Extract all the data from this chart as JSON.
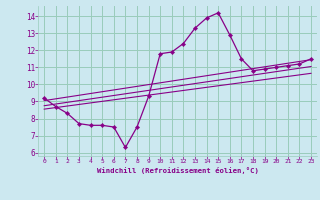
{
  "xlabel": "Windchill (Refroidissement éolien,°C)",
  "bg_color": "#cce8f0",
  "line_color": "#880088",
  "grid_color": "#99ccbb",
  "xlim": [
    -0.5,
    23.5
  ],
  "ylim": [
    5.8,
    14.6
  ],
  "yticks": [
    6,
    7,
    8,
    9,
    10,
    11,
    12,
    13,
    14
  ],
  "xticks": [
    0,
    1,
    2,
    3,
    4,
    5,
    6,
    7,
    8,
    9,
    10,
    11,
    12,
    13,
    14,
    15,
    16,
    17,
    18,
    19,
    20,
    21,
    22,
    23
  ],
  "curve1_x": [
    0,
    1,
    2,
    3,
    4,
    5,
    6,
    7,
    8,
    9,
    10,
    11,
    12,
    13,
    14,
    15,
    16,
    17,
    18,
    19,
    20,
    21,
    22,
    23
  ],
  "curve1_y": [
    9.2,
    8.7,
    8.3,
    7.7,
    7.6,
    7.6,
    7.5,
    6.3,
    7.5,
    9.3,
    11.8,
    11.9,
    12.4,
    13.3,
    13.9,
    14.2,
    12.9,
    11.5,
    10.8,
    10.9,
    11.0,
    11.1,
    11.2,
    11.5
  ],
  "line2_x": [
    0,
    23
  ],
  "line2_y": [
    9.05,
    11.45
  ],
  "line3_x": [
    0,
    23
  ],
  "line3_y": [
    8.75,
    11.05
  ],
  "line4_x": [
    0,
    23
  ],
  "line4_y": [
    8.55,
    10.65
  ]
}
